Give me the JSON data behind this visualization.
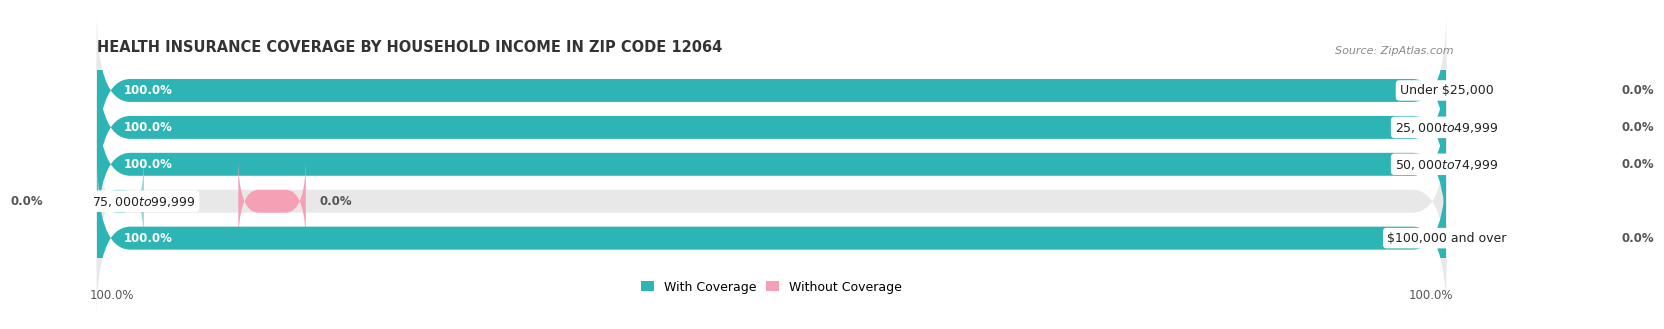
{
  "title": "HEALTH INSURANCE COVERAGE BY HOUSEHOLD INCOME IN ZIP CODE 12064",
  "source": "Source: ZipAtlas.com",
  "categories": [
    "Under $25,000",
    "$25,000 to $49,999",
    "$50,000 to $74,999",
    "$75,000 to $99,999",
    "$100,000 and over"
  ],
  "with_coverage": [
    100.0,
    100.0,
    100.0,
    0.0,
    100.0
  ],
  "without_coverage": [
    0.0,
    0.0,
    0.0,
    0.0,
    0.0
  ],
  "color_with": "#2db5b5",
  "color_with_light": "#8ed8d8",
  "color_without": "#f5a0b5",
  "bar_bg": "#e8e8e8",
  "title_fontsize": 10.5,
  "source_fontsize": 8,
  "label_fontsize": 9,
  "pct_fontsize": 8.5,
  "legend_fontsize": 9,
  "x_left_label": "100.0%",
  "x_right_label": "100.0%"
}
